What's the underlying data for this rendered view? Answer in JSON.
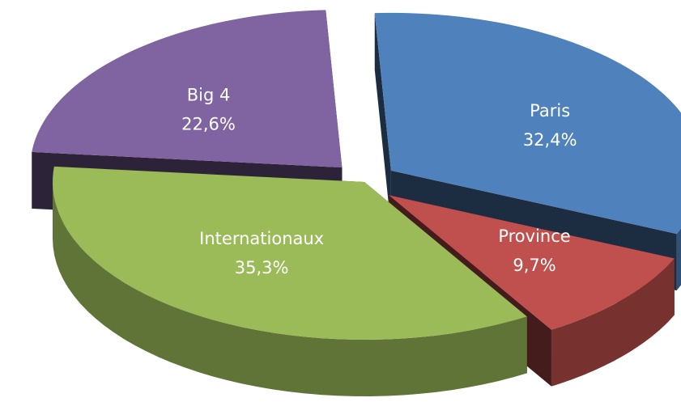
{
  "chart_data": {
    "type": "pie",
    "title": "",
    "legend": "none",
    "slices": [
      {
        "name": "Paris",
        "value_label": "32,4%",
        "value": 32.4,
        "color": "#4F81BD"
      },
      {
        "name": "Province",
        "value_label": "9,7%",
        "value": 9.7,
        "color": "#C0504D"
      },
      {
        "name": "Internationaux",
        "value_label": "35,3%",
        "value": 35.3,
        "color": "#9BBB59"
      },
      {
        "name": "Big 4",
        "value_label": "22,6%",
        "value": 22.6,
        "color": "#8064A2"
      }
    ]
  }
}
